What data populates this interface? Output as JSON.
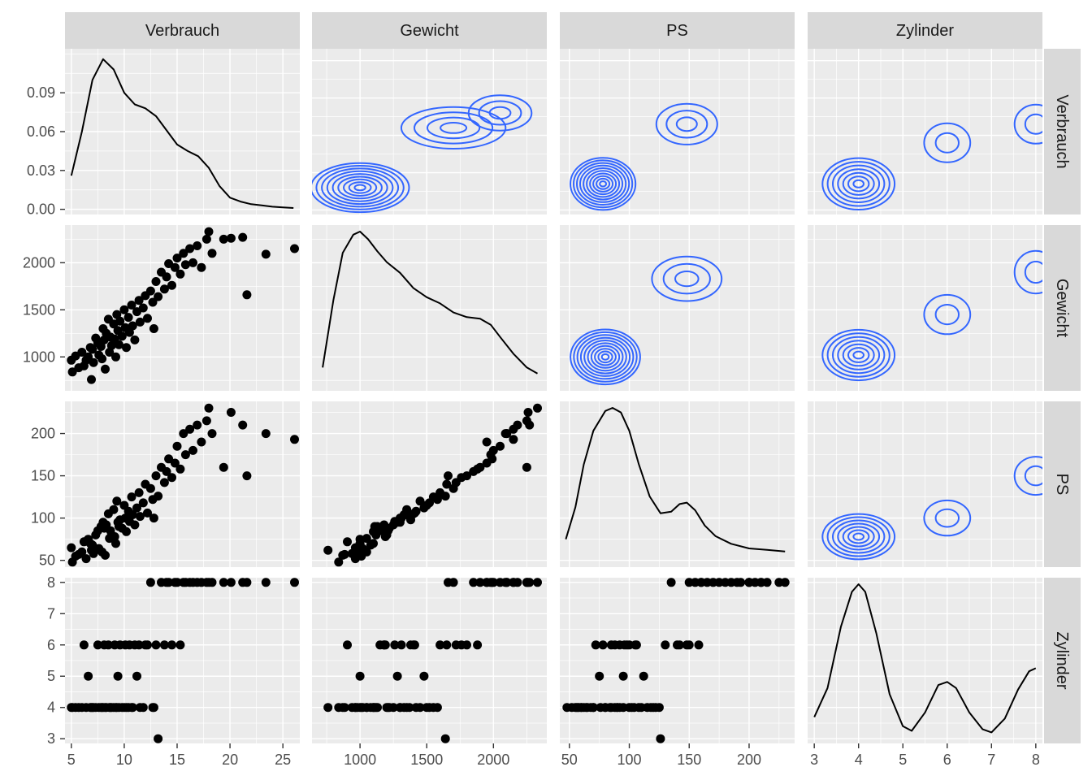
{
  "chart_data": {
    "type": "scatter-matrix",
    "title": "",
    "variables": [
      "Verbrauch",
      "Gewicht",
      "PS",
      "Zylinder"
    ],
    "diagonal": "density",
    "upper": "density2d",
    "lower": "scatter",
    "axes": {
      "Verbrauch": {
        "range": [
          4.4,
          26.6
        ],
        "ticks": [
          5,
          10,
          15,
          20,
          25
        ]
      },
      "Gewicht": {
        "range": [
          640,
          2400
        ],
        "ticks": [
          1000,
          1500,
          2000
        ]
      },
      "PS": {
        "range": [
          42,
          238
        ],
        "ticks": [
          50,
          100,
          150,
          200
        ]
      },
      "Zylinder": {
        "range": [
          2.85,
          8.15
        ],
        "ticks": [
          3,
          4,
          5,
          6,
          7,
          8
        ]
      }
    },
    "density_axis": {
      "label_var": "Verbrauch",
      "range": [
        -0.004,
        0.124
      ],
      "ticks": [
        0.0,
        0.03,
        0.06,
        0.09
      ],
      "tick_labels": [
        "0.00",
        "0.03",
        "0.06",
        "0.09"
      ]
    },
    "densities": {
      "Verbrauch": [
        [
          5,
          0.026
        ],
        [
          6,
          0.06
        ],
        [
          7,
          0.1
        ],
        [
          8,
          0.116
        ],
        [
          9,
          0.108
        ],
        [
          10,
          0.09
        ],
        [
          11,
          0.081
        ],
        [
          12,
          0.078
        ],
        [
          13,
          0.072
        ],
        [
          14,
          0.061
        ],
        [
          15,
          0.05
        ],
        [
          16,
          0.045
        ],
        [
          17,
          0.041
        ],
        [
          18,
          0.032
        ],
        [
          19,
          0.018
        ],
        [
          20,
          0.009
        ],
        [
          21,
          0.006
        ],
        [
          22,
          0.004
        ],
        [
          23,
          0.003
        ],
        [
          24,
          0.002
        ],
        [
          25,
          0.0015
        ],
        [
          26,
          0.001
        ]
      ],
      "Gewicht": [
        [
          720,
          0.11
        ],
        [
          800,
          0.55
        ],
        [
          870,
          0.86
        ],
        [
          950,
          0.98
        ],
        [
          1000,
          1.0
        ],
        [
          1060,
          0.95
        ],
        [
          1130,
          0.87
        ],
        [
          1200,
          0.8
        ],
        [
          1300,
          0.73
        ],
        [
          1400,
          0.63
        ],
        [
          1500,
          0.57
        ],
        [
          1600,
          0.53
        ],
        [
          1700,
          0.47
        ],
        [
          1800,
          0.44
        ],
        [
          1900,
          0.43
        ],
        [
          1980,
          0.39
        ],
        [
          2050,
          0.31
        ],
        [
          2150,
          0.2
        ],
        [
          2250,
          0.11
        ],
        [
          2330,
          0.07
        ]
      ],
      "PS": [
        [
          47,
          0.14
        ],
        [
          55,
          0.35
        ],
        [
          62,
          0.63
        ],
        [
          70,
          0.85
        ],
        [
          80,
          0.98
        ],
        [
          86,
          1.0
        ],
        [
          93,
          0.97
        ],
        [
          100,
          0.85
        ],
        [
          108,
          0.63
        ],
        [
          117,
          0.42
        ],
        [
          126,
          0.31
        ],
        [
          135,
          0.32
        ],
        [
          142,
          0.37
        ],
        [
          148,
          0.38
        ],
        [
          155,
          0.33
        ],
        [
          163,
          0.23
        ],
        [
          172,
          0.16
        ],
        [
          185,
          0.11
        ],
        [
          200,
          0.08
        ],
        [
          215,
          0.07
        ],
        [
          230,
          0.06
        ]
      ],
      "Zylinder": [
        [
          3,
          0.13
        ],
        [
          3.3,
          0.32
        ],
        [
          3.6,
          0.72
        ],
        [
          3.85,
          0.95
        ],
        [
          4,
          1.0
        ],
        [
          4.15,
          0.95
        ],
        [
          4.4,
          0.68
        ],
        [
          4.7,
          0.28
        ],
        [
          5,
          0.07
        ],
        [
          5.2,
          0.04
        ],
        [
          5.5,
          0.16
        ],
        [
          5.8,
          0.34
        ],
        [
          6,
          0.36
        ],
        [
          6.2,
          0.32
        ],
        [
          6.5,
          0.16
        ],
        [
          6.8,
          0.05
        ],
        [
          7,
          0.03
        ],
        [
          7.3,
          0.12
        ],
        [
          7.6,
          0.31
        ],
        [
          7.85,
          0.43
        ],
        [
          8,
          0.45
        ]
      ]
    },
    "density2d_centers": {
      "Gewicht|Verbrauch": [
        {
          "x": 1000,
          "y": 8,
          "levels": 9,
          "sx": 380,
          "sy": 3.4
        },
        {
          "x": 1700,
          "y": 16,
          "levels": 4,
          "sx": 420,
          "sy": 3.0
        },
        {
          "x": 2050,
          "y": 18,
          "levels": 3,
          "sx": 260,
          "sy": 2.6
        }
      ],
      "PS|Verbrauch": [
        {
          "x": 78,
          "y": 8.5,
          "levels": 10,
          "sx": 28,
          "sy": 3.6
        },
        {
          "x": 148,
          "y": 16.5,
          "levels": 3,
          "sx": 28,
          "sy": 3.0
        }
      ],
      "Zylinder|Verbrauch": [
        {
          "x": 4,
          "y": 8.5,
          "levels": 7,
          "sx": 0.85,
          "sy": 3.6
        },
        {
          "x": 6,
          "y": 14,
          "levels": 2,
          "sx": 0.6,
          "sy": 3.0
        },
        {
          "x": 8,
          "y": 16.5,
          "levels": 2,
          "sx": 0.55,
          "sy": 3.0
        }
      ],
      "PS|Gewicht": [
        {
          "x": 80,
          "y": 1000,
          "levels": 10,
          "sx": 30,
          "sy": 300
        },
        {
          "x": 148,
          "y": 1830,
          "levels": 3,
          "sx": 32,
          "sy": 260
        }
      ],
      "Zylinder|Gewicht": [
        {
          "x": 4,
          "y": 1020,
          "levels": 7,
          "sx": 0.85,
          "sy": 280
        },
        {
          "x": 6,
          "y": 1450,
          "levels": 2,
          "sx": 0.6,
          "sy": 240
        },
        {
          "x": 8,
          "y": 1900,
          "levels": 2,
          "sx": 0.55,
          "sy": 260
        }
      ],
      "Zylinder|PS": [
        {
          "x": 4,
          "y": 78,
          "levels": 7,
          "sx": 0.85,
          "sy": 28
        },
        {
          "x": 6,
          "y": 100,
          "levels": 2,
          "sx": 0.6,
          "sy": 24
        },
        {
          "x": 8,
          "y": 150,
          "levels": 2,
          "sx": 0.55,
          "sy": 26
        }
      ]
    },
    "points": [
      [
        5.0,
        965,
        65,
        4
      ],
      [
        5.1,
        840,
        48,
        4
      ],
      [
        5.4,
        1010,
        55,
        4
      ],
      [
        5.7,
        885,
        57,
        4
      ],
      [
        6.0,
        1050,
        60,
        4
      ],
      [
        6.2,
        905,
        72,
        6
      ],
      [
        6.4,
        965,
        52,
        4
      ],
      [
        6.6,
        1000,
        75,
        5
      ],
      [
        6.8,
        1100,
        70,
        4
      ],
      [
        6.9,
        760,
        62,
        4
      ],
      [
        7.0,
        1080,
        68,
        4
      ],
      [
        7.1,
        940,
        58,
        4
      ],
      [
        7.3,
        1200,
        80,
        4
      ],
      [
        7.5,
        1150,
        85,
        6
      ],
      [
        7.6,
        1020,
        64,
        4
      ],
      [
        7.8,
        1110,
        90,
        4
      ],
      [
        7.9,
        980,
        60,
        4
      ],
      [
        8.0,
        1300,
        95,
        4
      ],
      [
        8.1,
        1180,
        88,
        6
      ],
      [
        8.2,
        870,
        56,
        4
      ],
      [
        8.3,
        1250,
        92,
        4
      ],
      [
        8.5,
        1400,
        105,
        6
      ],
      [
        8.6,
        1050,
        76,
        4
      ],
      [
        8.7,
        1210,
        85,
        4
      ],
      [
        8.8,
        1120,
        80,
        4
      ],
      [
        9.0,
        1350,
        110,
        4
      ],
      [
        9.1,
        1190,
        78,
        6
      ],
      [
        9.2,
        1000,
        70,
        4
      ],
      [
        9.3,
        1450,
        120,
        4
      ],
      [
        9.4,
        1280,
        95,
        5
      ],
      [
        9.5,
        1130,
        90,
        4
      ],
      [
        9.6,
        1380,
        98,
        6
      ],
      [
        9.8,
        1220,
        88,
        4
      ],
      [
        10.0,
        1500,
        115,
        4
      ],
      [
        10.1,
        1310,
        100,
        6
      ],
      [
        10.2,
        1100,
        84,
        4
      ],
      [
        10.4,
        1420,
        108,
        4
      ],
      [
        10.5,
        1260,
        96,
        6
      ],
      [
        10.7,
        1550,
        125,
        4
      ],
      [
        10.8,
        1330,
        104,
        4
      ],
      [
        11.0,
        1180,
        92,
        6
      ],
      [
        11.2,
        1480,
        112,
        5
      ],
      [
        11.4,
        1600,
        130,
        6
      ],
      [
        11.5,
        1370,
        102,
        4
      ],
      [
        11.8,
        1520,
        118,
        4
      ],
      [
        12.0,
        1650,
        140,
        6
      ],
      [
        12.2,
        1410,
        106,
        6
      ],
      [
        12.5,
        1700,
        135,
        8
      ],
      [
        12.7,
        1580,
        122,
        4
      ],
      [
        12.8,
        1300,
        100,
        4
      ],
      [
        13.0,
        1800,
        150,
        6
      ],
      [
        13.2,
        1640,
        126,
        3
      ],
      [
        13.5,
        1900,
        160,
        8
      ],
      [
        13.8,
        1720,
        142,
        6
      ],
      [
        14.0,
        1850,
        155,
        8
      ],
      [
        14.2,
        1990,
        170,
        8
      ],
      [
        14.5,
        1760,
        148,
        6
      ],
      [
        14.8,
        1950,
        165,
        8
      ],
      [
        15.0,
        2050,
        185,
        8
      ],
      [
        15.3,
        1880,
        158,
        6
      ],
      [
        15.6,
        2100,
        200,
        8
      ],
      [
        15.8,
        1980,
        175,
        8
      ],
      [
        16.2,
        2150,
        205,
        8
      ],
      [
        16.5,
        2000,
        180,
        8
      ],
      [
        16.9,
        2180,
        210,
        8
      ],
      [
        17.3,
        1950,
        190,
        8
      ],
      [
        17.8,
        2250,
        215,
        8
      ],
      [
        18.0,
        2330,
        230,
        8
      ],
      [
        18.3,
        2100,
        200,
        8
      ],
      [
        19.4,
        2250,
        160,
        8
      ],
      [
        20.1,
        2260,
        225,
        8
      ],
      [
        21.2,
        2270,
        210,
        8
      ],
      [
        21.6,
        1660,
        150,
        8
      ],
      [
        23.4,
        2090,
        200,
        8
      ],
      [
        26.1,
        2150,
        193,
        8
      ]
    ]
  }
}
